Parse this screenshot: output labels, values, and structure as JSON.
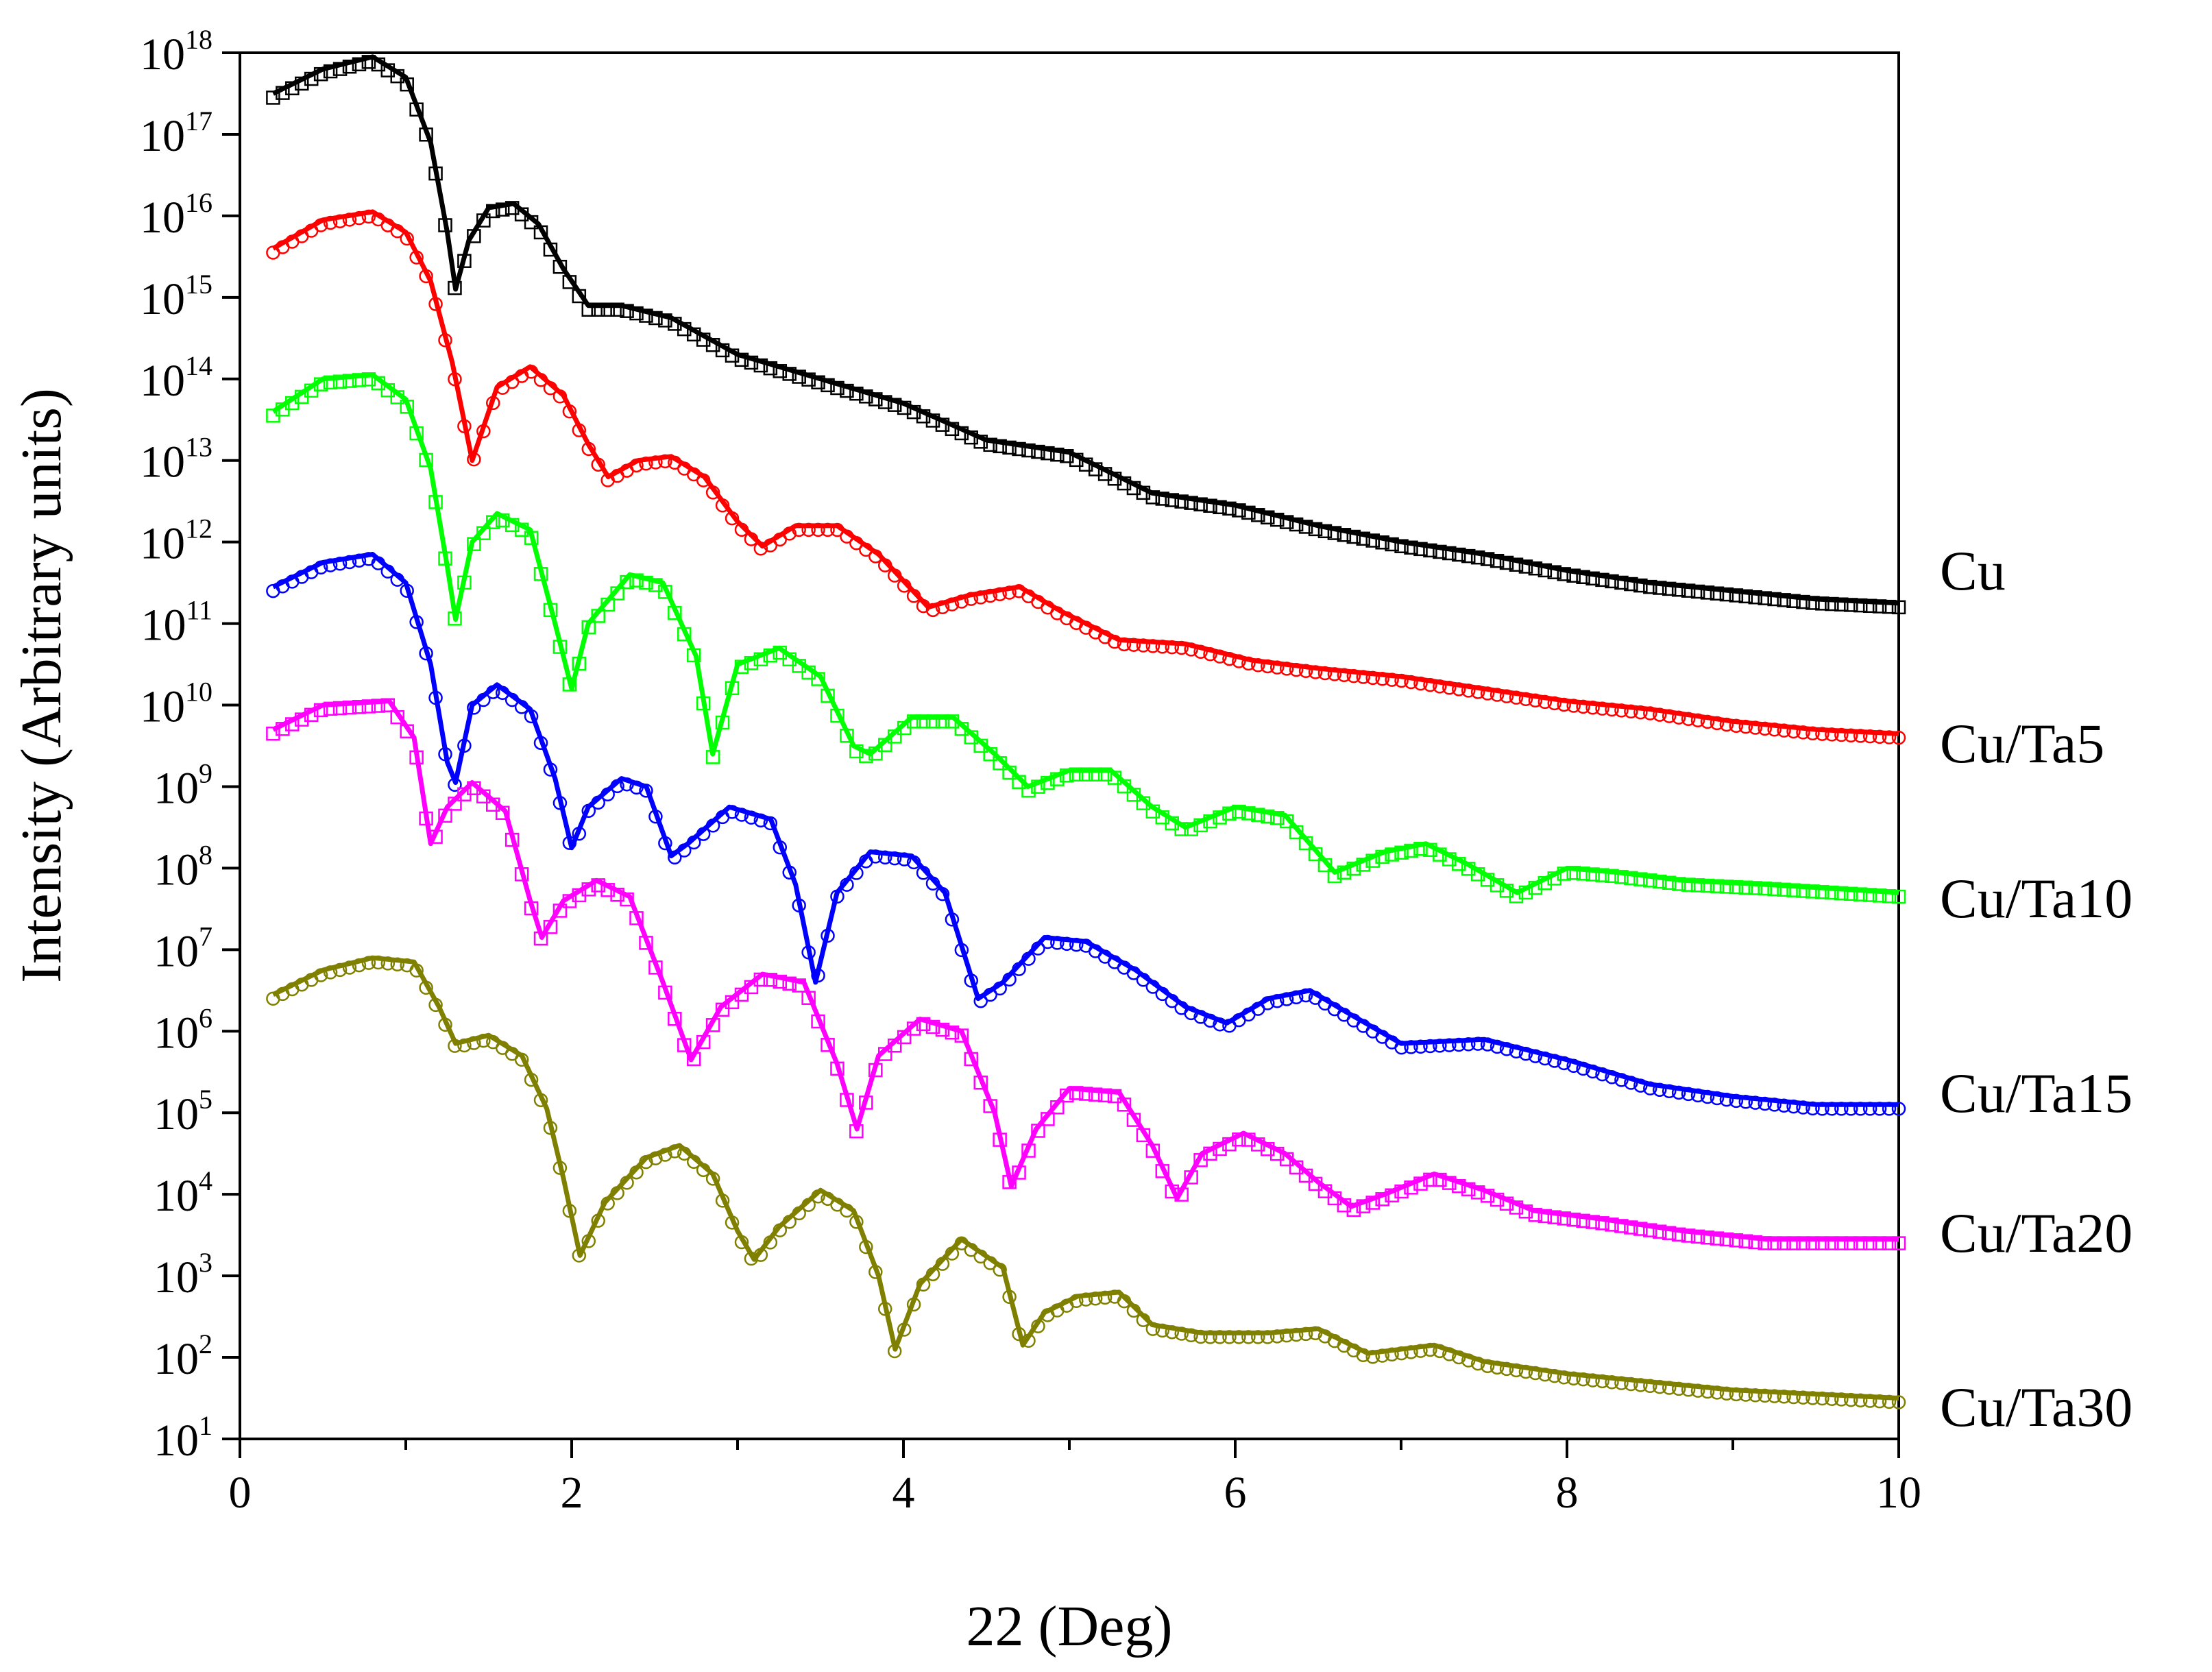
{
  "chart_data": {
    "type": "line",
    "title": "",
    "xlabel": "22  (Deg)",
    "ylabel": "Intensity (Arbitrary units)",
    "xlim": [
      0,
      10
    ],
    "ylim_log10": [
      1,
      18
    ],
    "y_scale": "log",
    "x_ticks": [
      "0",
      "2",
      "4",
      "6",
      "8",
      "10"
    ],
    "y_tick_base": "10",
    "y_tick_exponents": [
      "1",
      "2",
      "3",
      "4",
      "5",
      "6",
      "7",
      "8",
      "9",
      "10",
      "11",
      "12",
      "13",
      "14",
      "15",
      "16",
      "17",
      "18"
    ],
    "legend_placement": "right",
    "series": [
      {
        "name": "Cu",
        "color": "#000000",
        "marker": "square",
        "log_points": [
          [
            0.2,
            17.5
          ],
          [
            0.5,
            17.8
          ],
          [
            0.8,
            17.95
          ],
          [
            1.0,
            17.7
          ],
          [
            1.15,
            16.9
          ],
          [
            1.25,
            15.8
          ],
          [
            1.3,
            15.1
          ],
          [
            1.38,
            15.7
          ],
          [
            1.5,
            16.1
          ],
          [
            1.65,
            16.15
          ],
          [
            1.8,
            15.9
          ],
          [
            1.95,
            15.35
          ],
          [
            2.1,
            14.9
          ],
          [
            2.3,
            14.9
          ],
          [
            2.6,
            14.75
          ],
          [
            3.0,
            14.3
          ],
          [
            3.5,
            14.0
          ],
          [
            4.0,
            13.7
          ],
          [
            4.5,
            13.25
          ],
          [
            5.0,
            13.1
          ],
          [
            5.5,
            12.6
          ],
          [
            6.0,
            12.45
          ],
          [
            6.5,
            12.2
          ],
          [
            7.0,
            12.0
          ],
          [
            7.5,
            11.85
          ],
          [
            8.0,
            11.65
          ],
          [
            8.5,
            11.5
          ],
          [
            9.0,
            11.4
          ],
          [
            9.5,
            11.3
          ],
          [
            10.0,
            11.25
          ]
        ]
      },
      {
        "name": "Cu/Ta5",
        "color": "#ff0000",
        "marker": "circle",
        "log_points": [
          [
            0.2,
            15.6
          ],
          [
            0.5,
            15.95
          ],
          [
            0.8,
            16.05
          ],
          [
            1.0,
            15.8
          ],
          [
            1.15,
            15.2
          ],
          [
            1.28,
            14.2
          ],
          [
            1.4,
            13.0
          ],
          [
            1.55,
            13.9
          ],
          [
            1.75,
            14.15
          ],
          [
            1.95,
            13.8
          ],
          [
            2.1,
            13.2
          ],
          [
            2.22,
            12.8
          ],
          [
            2.4,
            13.0
          ],
          [
            2.6,
            13.05
          ],
          [
            2.8,
            12.8
          ],
          [
            3.0,
            12.25
          ],
          [
            3.15,
            11.95
          ],
          [
            3.35,
            12.2
          ],
          [
            3.6,
            12.2
          ],
          [
            3.85,
            11.85
          ],
          [
            4.15,
            11.2
          ],
          [
            4.4,
            11.35
          ],
          [
            4.7,
            11.45
          ],
          [
            4.95,
            11.15
          ],
          [
            5.3,
            10.8
          ],
          [
            5.7,
            10.75
          ],
          [
            6.1,
            10.55
          ],
          [
            6.5,
            10.45
          ],
          [
            7.0,
            10.35
          ],
          [
            7.5,
            10.2
          ],
          [
            8.0,
            10.05
          ],
          [
            8.5,
            9.95
          ],
          [
            9.0,
            9.8
          ],
          [
            9.5,
            9.7
          ],
          [
            10.0,
            9.65
          ]
        ]
      },
      {
        "name": "Cu/Ta10",
        "color": "#00ff00",
        "marker": "square",
        "log_points": [
          [
            0.2,
            13.6
          ],
          [
            0.5,
            14.0
          ],
          [
            0.8,
            14.05
          ],
          [
            1.0,
            13.75
          ],
          [
            1.15,
            12.9
          ],
          [
            1.25,
            11.7
          ],
          [
            1.3,
            11.05
          ],
          [
            1.4,
            12.0
          ],
          [
            1.55,
            12.35
          ],
          [
            1.75,
            12.15
          ],
          [
            1.9,
            11.0
          ],
          [
            2.0,
            10.2
          ],
          [
            2.1,
            11.0
          ],
          [
            2.35,
            11.6
          ],
          [
            2.55,
            11.5
          ],
          [
            2.75,
            10.6
          ],
          [
            2.85,
            9.4
          ],
          [
            3.0,
            10.5
          ],
          [
            3.25,
            10.7
          ],
          [
            3.5,
            10.35
          ],
          [
            3.7,
            9.5
          ],
          [
            3.8,
            9.4
          ],
          [
            4.05,
            9.85
          ],
          [
            4.3,
            9.85
          ],
          [
            4.55,
            9.4
          ],
          [
            4.75,
            9.0
          ],
          [
            5.0,
            9.2
          ],
          [
            5.25,
            9.2
          ],
          [
            5.5,
            8.75
          ],
          [
            5.7,
            8.5
          ],
          [
            6.0,
            8.75
          ],
          [
            6.3,
            8.65
          ],
          [
            6.6,
            7.95
          ],
          [
            6.9,
            8.2
          ],
          [
            7.15,
            8.3
          ],
          [
            7.4,
            8.05
          ],
          [
            7.7,
            7.7
          ],
          [
            8.0,
            8.0
          ],
          [
            8.3,
            7.95
          ],
          [
            8.7,
            7.85
          ],
          [
            9.2,
            7.8
          ],
          [
            9.6,
            7.75
          ],
          [
            10.0,
            7.7
          ]
        ]
      },
      {
        "name": "Cu/Ta15",
        "color": "#0000ff",
        "marker": "circle",
        "log_points": [
          [
            0.2,
            11.45
          ],
          [
            0.5,
            11.75
          ],
          [
            0.8,
            11.85
          ],
          [
            1.0,
            11.5
          ],
          [
            1.15,
            10.5
          ],
          [
            1.25,
            9.3
          ],
          [
            1.3,
            9.05
          ],
          [
            1.4,
            10.0
          ],
          [
            1.55,
            10.25
          ],
          [
            1.75,
            9.95
          ],
          [
            1.9,
            9.1
          ],
          [
            2.0,
            8.25
          ],
          [
            2.1,
            8.75
          ],
          [
            2.3,
            9.1
          ],
          [
            2.45,
            9.0
          ],
          [
            2.6,
            8.15
          ],
          [
            2.7,
            8.3
          ],
          [
            2.95,
            8.75
          ],
          [
            3.2,
            8.6
          ],
          [
            3.35,
            7.8
          ],
          [
            3.47,
            6.6
          ],
          [
            3.6,
            7.7
          ],
          [
            3.8,
            8.2
          ],
          [
            4.05,
            8.15
          ],
          [
            4.25,
            7.7
          ],
          [
            4.45,
            6.4
          ],
          [
            4.6,
            6.6
          ],
          [
            4.85,
            7.15
          ],
          [
            5.1,
            7.1
          ],
          [
            5.4,
            6.75
          ],
          [
            5.7,
            6.3
          ],
          [
            5.95,
            6.1
          ],
          [
            6.2,
            6.4
          ],
          [
            6.45,
            6.5
          ],
          [
            6.7,
            6.2
          ],
          [
            7.0,
            5.85
          ],
          [
            7.5,
            5.9
          ],
          [
            8.0,
            5.65
          ],
          [
            8.5,
            5.35
          ],
          [
            9.0,
            5.2
          ],
          [
            9.5,
            5.1
          ],
          [
            10.0,
            5.1
          ]
        ]
      },
      {
        "name": "Cu/Ta20",
        "color": "#ff00ff",
        "marker": "square",
        "log_points": [
          [
            0.2,
            9.7
          ],
          [
            0.5,
            10.0
          ],
          [
            0.9,
            10.05
          ],
          [
            1.05,
            9.6
          ],
          [
            1.15,
            8.3
          ],
          [
            1.25,
            8.75
          ],
          [
            1.4,
            9.05
          ],
          [
            1.6,
            8.7
          ],
          [
            1.75,
            7.6
          ],
          [
            1.82,
            7.15
          ],
          [
            1.95,
            7.6
          ],
          [
            2.15,
            7.85
          ],
          [
            2.35,
            7.65
          ],
          [
            2.55,
            6.6
          ],
          [
            2.72,
            5.65
          ],
          [
            2.9,
            6.3
          ],
          [
            3.15,
            6.7
          ],
          [
            3.4,
            6.6
          ],
          [
            3.6,
            5.6
          ],
          [
            3.72,
            4.8
          ],
          [
            3.85,
            5.7
          ],
          [
            4.1,
            6.15
          ],
          [
            4.35,
            6.0
          ],
          [
            4.55,
            5.0
          ],
          [
            4.65,
            4.1
          ],
          [
            4.8,
            4.8
          ],
          [
            5.0,
            5.3
          ],
          [
            5.3,
            5.25
          ],
          [
            5.5,
            4.6
          ],
          [
            5.65,
            3.95
          ],
          [
            5.8,
            4.5
          ],
          [
            6.05,
            4.75
          ],
          [
            6.3,
            4.5
          ],
          [
            6.5,
            4.15
          ],
          [
            6.7,
            3.85
          ],
          [
            6.9,
            4.0
          ],
          [
            7.2,
            4.25
          ],
          [
            7.5,
            4.05
          ],
          [
            7.8,
            3.8
          ],
          [
            8.2,
            3.7
          ],
          [
            8.7,
            3.55
          ],
          [
            9.2,
            3.45
          ],
          [
            9.6,
            3.45
          ],
          [
            10.0,
            3.45
          ]
        ]
      },
      {
        "name": "Cu/Ta30",
        "color": "#808000",
        "marker": "circle",
        "log_points": [
          [
            0.2,
            6.45
          ],
          [
            0.5,
            6.75
          ],
          [
            0.8,
            6.9
          ],
          [
            1.05,
            6.85
          ],
          [
            1.2,
            6.3
          ],
          [
            1.3,
            5.85
          ],
          [
            1.5,
            5.95
          ],
          [
            1.7,
            5.7
          ],
          [
            1.85,
            5.05
          ],
          [
            1.95,
            4.2
          ],
          [
            2.05,
            3.25
          ],
          [
            2.2,
            3.9
          ],
          [
            2.45,
            4.45
          ],
          [
            2.65,
            4.6
          ],
          [
            2.85,
            4.25
          ],
          [
            3.0,
            3.55
          ],
          [
            3.1,
            3.2
          ],
          [
            3.25,
            3.6
          ],
          [
            3.5,
            4.05
          ],
          [
            3.7,
            3.8
          ],
          [
            3.85,
            3.0
          ],
          [
            3.95,
            2.1
          ],
          [
            4.1,
            2.9
          ],
          [
            4.35,
            3.45
          ],
          [
            4.6,
            3.1
          ],
          [
            4.72,
            2.15
          ],
          [
            4.85,
            2.55
          ],
          [
            5.05,
            2.75
          ],
          [
            5.3,
            2.8
          ],
          [
            5.5,
            2.4
          ],
          [
            5.8,
            2.3
          ],
          [
            6.2,
            2.3
          ],
          [
            6.5,
            2.35
          ],
          [
            6.8,
            2.05
          ],
          [
            7.2,
            2.15
          ],
          [
            7.5,
            1.95
          ],
          [
            8.0,
            1.8
          ],
          [
            8.5,
            1.7
          ],
          [
            9.0,
            1.6
          ],
          [
            9.5,
            1.55
          ],
          [
            10.0,
            1.5
          ]
        ]
      }
    ]
  }
}
